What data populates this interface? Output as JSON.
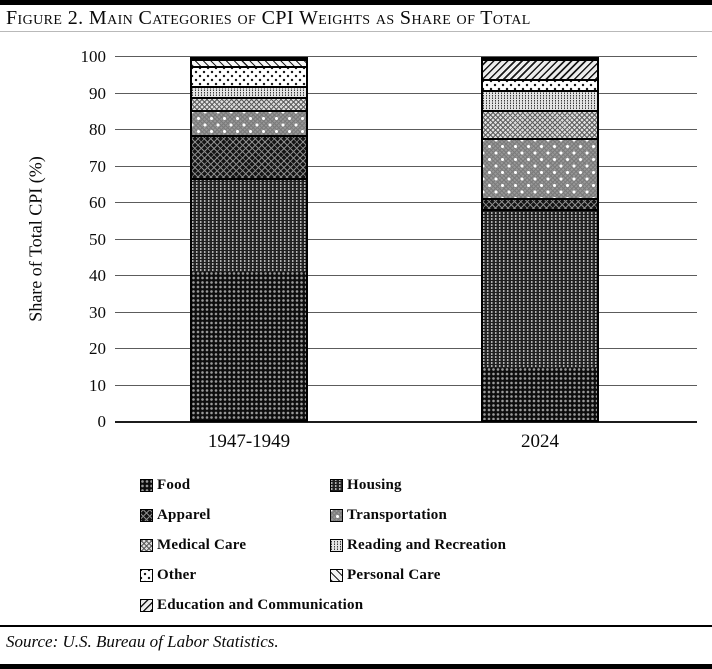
{
  "figure": {
    "title": "Figure 2. Main Categories of CPI Weights as Share of Total",
    "source": "Source: U.S. Bureau of Labor Statistics."
  },
  "chart_data": {
    "type": "bar",
    "stacked": true,
    "title": "Figure 2. Main Categories of CPI Weights as Share of Total",
    "categories": [
      "1947-1949",
      "2024"
    ],
    "xlabel": "",
    "ylabel": "Share of Total CPI (%)",
    "ylim": [
      0,
      100
    ],
    "yticks": [
      0,
      10,
      20,
      30,
      40,
      50,
      60,
      70,
      80,
      90,
      100
    ],
    "grid": true,
    "legend_position": "bottom",
    "series": [
      {
        "name": "Food",
        "key": "food",
        "values": [
          41,
          14.5
        ]
      },
      {
        "name": "Housing",
        "key": "housing",
        "values": [
          26,
          44
        ]
      },
      {
        "name": "Apparel",
        "key": "apparel",
        "values": [
          12,
          3
        ]
      },
      {
        "name": "Transportation",
        "key": "transportation",
        "values": [
          7,
          16.5
        ]
      },
      {
        "name": "Medical Care",
        "key": "medical-care",
        "values": [
          3.5,
          8
        ]
      },
      {
        "name": "Reading and Recreation",
        "key": "reading-recreation",
        "values": [
          3,
          5.5
        ]
      },
      {
        "name": "Other",
        "key": "other",
        "values": [
          5.5,
          3
        ]
      },
      {
        "name": "Personal Care",
        "key": "personal-care",
        "values": [
          2,
          0
        ]
      },
      {
        "name": "Education and Communication",
        "key": "education-communication",
        "values": [
          0,
          5.5
        ]
      }
    ]
  }
}
